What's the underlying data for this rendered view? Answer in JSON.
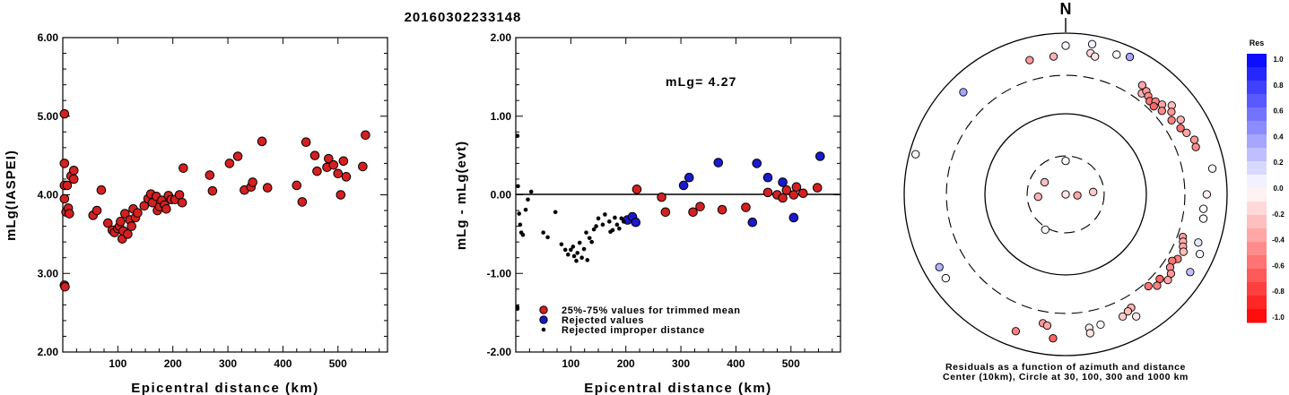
{
  "figure": {
    "title": "20160302233148",
    "colorbar_title": "Res",
    "north_label": "N",
    "polar_caption_line1": "Residuals as a function of azimuth and distance",
    "polar_caption_line2": "Center (10km), Circle at 30, 100, 300 and 1000 km",
    "colors": {
      "trimmed": "#d42020",
      "rejected": "#1a1acc",
      "improper": "#000000"
    }
  },
  "chart_data": [
    {
      "type": "scatter",
      "title": "",
      "xlabel": "Epicentral distance (km)",
      "ylabel": "mLg(IASPEI)",
      "xlim": [
        0,
        590
      ],
      "ylim": [
        2.0,
        6.0
      ],
      "xticks": [
        "100",
        "200",
        "300",
        "400",
        "500"
      ],
      "yticks": [
        "2.00",
        "3.00",
        "4.00",
        "5.00",
        "6.00"
      ],
      "series": [
        {
          "role": "trimmed",
          "points": [
            [
              3,
              5.03
            ],
            [
              3,
              4.4
            ],
            [
              3,
              4.12
            ],
            [
              3,
              3.95
            ],
            [
              3,
              2.85
            ],
            [
              4,
              2.83
            ],
            [
              6,
              3.78
            ],
            [
              8,
              4.12
            ],
            [
              10,
              3.83
            ],
            [
              12,
              3.76
            ],
            [
              15,
              4.24
            ],
            [
              20,
              4.31
            ],
            [
              20,
              4.2
            ],
            [
              55,
              3.74
            ],
            [
              62,
              3.8
            ],
            [
              70,
              4.06
            ],
            [
              82,
              3.64
            ],
            [
              90,
              3.55
            ],
            [
              94,
              3.52
            ],
            [
              100,
              3.57
            ],
            [
              103,
              3.6
            ],
            [
              105,
              3.66
            ],
            [
              108,
              3.44
            ],
            [
              110,
              3.54
            ],
            [
              113,
              3.76
            ],
            [
              118,
              3.5
            ],
            [
              122,
              3.68
            ],
            [
              125,
              3.6
            ],
            [
              128,
              3.82
            ],
            [
              132,
              3.71
            ],
            [
              136,
              3.77
            ],
            [
              148,
              3.86
            ],
            [
              155,
              3.95
            ],
            [
              160,
              4.01
            ],
            [
              163,
              3.9
            ],
            [
              170,
              3.98
            ],
            [
              172,
              3.8
            ],
            [
              176,
              3.85
            ],
            [
              180,
              3.93
            ],
            [
              185,
              3.87
            ],
            [
              188,
              3.82
            ],
            [
              192,
              3.99
            ],
            [
              197,
              3.94
            ],
            [
              204,
              3.94
            ],
            [
              212,
              4.0
            ],
            [
              217,
              3.9
            ],
            [
              219,
              4.34
            ],
            [
              267,
              4.25
            ],
            [
              272,
              4.05
            ],
            [
              303,
              4.4
            ],
            [
              318,
              4.49
            ],
            [
              330,
              4.06
            ],
            [
              342,
              4.1
            ],
            [
              345,
              4.16
            ],
            [
              362,
              4.68
            ],
            [
              372,
              4.09
            ],
            [
              425,
              4.12
            ],
            [
              435,
              3.91
            ],
            [
              442,
              4.67
            ],
            [
              458,
              4.5
            ],
            [
              462,
              4.3
            ],
            [
              480,
              4.35
            ],
            [
              483,
              4.46
            ],
            [
              492,
              4.38
            ],
            [
              500,
              4.27
            ],
            [
              505,
              4.0
            ],
            [
              510,
              4.43
            ],
            [
              515,
              4.23
            ],
            [
              545,
              4.36
            ],
            [
              550,
              4.76
            ]
          ]
        }
      ]
    },
    {
      "type": "scatter",
      "title": "",
      "xlabel": "Epicentral distance (km)",
      "ylabel": "mLg - mLg(evt)",
      "xlim": [
        0,
        590
      ],
      "ylim": [
        -2.0,
        2.0
      ],
      "xticks": [
        "100",
        "200",
        "300",
        "400",
        "500"
      ],
      "yticks": [
        "-2.00",
        "-1.00",
        "0.00",
        "1.00",
        "2.00"
      ],
      "annotation": "mLg= 4.27",
      "legend": [
        "25%-75% values for trimmed mean",
        "Rejected values",
        "Rejected improper distance"
      ],
      "legend_position": "bottom-left",
      "series": [
        {
          "role": "trimmed",
          "points": [
            [
              220,
              0.07
            ],
            [
              265,
              -0.03
            ],
            [
              272,
              -0.22
            ],
            [
              322,
              -0.22
            ],
            [
              335,
              -0.15
            ],
            [
              375,
              -0.19
            ],
            [
              418,
              -0.16
            ],
            [
              458,
              0.03
            ],
            [
              475,
              0.0
            ],
            [
              485,
              -0.04
            ],
            [
              492,
              0.06
            ],
            [
              505,
              0.0
            ],
            [
              510,
              0.1
            ],
            [
              522,
              0.02
            ],
            [
              548,
              0.09
            ]
          ]
        },
        {
          "role": "rejected",
          "points": [
            [
              203,
              -0.32
            ],
            [
              212,
              -0.28
            ],
            [
              218,
              -0.35
            ],
            [
              305,
              0.12
            ],
            [
              315,
              0.22
            ],
            [
              368,
              0.41
            ],
            [
              430,
              -0.35
            ],
            [
              438,
              0.4
            ],
            [
              458,
              0.22
            ],
            [
              485,
              0.16
            ],
            [
              505,
              -0.29
            ],
            [
              553,
              0.49
            ]
          ]
        },
        {
          "role": "improper",
          "points": [
            [
              3,
              0.75
            ],
            [
              4,
              0.11
            ],
            [
              6,
              -0.24
            ],
            [
              8,
              -0.38
            ],
            [
              10,
              -0.48
            ],
            [
              13,
              -0.51
            ],
            [
              18,
              -0.19
            ],
            [
              22,
              -0.06
            ],
            [
              28,
              0.04
            ],
            [
              3,
              -1.43
            ],
            [
              3,
              -1.45
            ],
            [
              50,
              -0.48
            ],
            [
              58,
              -0.54
            ],
            [
              72,
              -0.22
            ],
            [
              83,
              -0.63
            ],
            [
              90,
              -0.7
            ],
            [
              95,
              -0.76
            ],
            [
              100,
              -0.7
            ],
            [
              104,
              -0.66
            ],
            [
              106,
              -0.78
            ],
            [
              110,
              -0.84
            ],
            [
              112,
              -0.74
            ],
            [
              116,
              -0.61
            ],
            [
              120,
              -0.8
            ],
            [
              124,
              -0.69
            ],
            [
              128,
              -0.48
            ],
            [
              130,
              -0.83
            ],
            [
              134,
              -0.55
            ],
            [
              138,
              -0.6
            ],
            [
              142,
              -0.44
            ],
            [
              146,
              -0.4
            ],
            [
              150,
              -0.3
            ],
            [
              158,
              -0.38
            ],
            [
              162,
              -0.25
            ],
            [
              170,
              -0.34
            ],
            [
              172,
              -0.47
            ],
            [
              176,
              -0.45
            ],
            [
              180,
              -0.29
            ],
            [
              184,
              -0.38
            ],
            [
              188,
              -0.43
            ],
            [
              192,
              -0.3
            ],
            [
              196,
              -0.34
            ]
          ]
        }
      ]
    },
    {
      "type": "scatter",
      "title": "",
      "xlabel": "",
      "ylabel": "",
      "note": "polar plot: azimuth in degrees clockwise from north, distance in km on a log scale",
      "circles_km": [
        30,
        100,
        300,
        1000
      ],
      "center_km": 10,
      "points": [
        {
          "az": 35,
          "km": 450,
          "res": -0.35
        },
        {
          "az": 37,
          "km": 370,
          "res": -0.3
        },
        {
          "az": 38,
          "km": 420,
          "res": -0.4
        },
        {
          "az": 40,
          "km": 390,
          "res": -0.45
        },
        {
          "az": 42,
          "km": 360,
          "res": -0.55
        },
        {
          "az": 44,
          "km": 400,
          "res": -0.5
        },
        {
          "az": 45,
          "km": 350,
          "res": -0.6
        },
        {
          "az": 47,
          "km": 430,
          "res": -0.35
        },
        {
          "az": 49,
          "km": 380,
          "res": -0.45
        },
        {
          "az": 50,
          "km": 520,
          "res": -0.25
        },
        {
          "az": 52,
          "km": 460,
          "res": -0.4
        },
        {
          "az": 55,
          "km": 400,
          "res": -0.5
        },
        {
          "az": 57,
          "km": 500,
          "res": -0.3
        },
        {
          "az": 60,
          "km": 440,
          "res": -0.55
        },
        {
          "az": 63,
          "km": 480,
          "res": -0.35
        },
        {
          "az": 67,
          "km": 540,
          "res": -0.4
        },
        {
          "az": 70,
          "km": 520,
          "res": -0.45
        },
        {
          "az": 110,
          "km": 350,
          "res": -0.4
        },
        {
          "az": 112,
          "km": 370,
          "res": -0.3
        },
        {
          "az": 114,
          "km": 390,
          "res": -0.35
        },
        {
          "az": 116,
          "km": 420,
          "res": -0.25
        },
        {
          "az": 120,
          "km": 400,
          "res": -0.5
        },
        {
          "az": 122,
          "km": 360,
          "res": -0.55
        },
        {
          "az": 125,
          "km": 380,
          "res": -0.45
        },
        {
          "az": 127,
          "km": 430,
          "res": -0.4
        },
        {
          "az": 130,
          "km": 450,
          "res": -0.35
        },
        {
          "az": 132,
          "km": 370,
          "res": -0.6
        },
        {
          "az": 135,
          "km": 400,
          "res": -0.5
        },
        {
          "az": 138,
          "km": 340,
          "res": -0.55
        },
        {
          "az": 150,
          "km": 420,
          "res": -0.3
        },
        {
          "az": 152,
          "km": 440,
          "res": -0.25
        },
        {
          "az": 155,
          "km": 470,
          "res": -0.2
        },
        {
          "az": 90,
          "km": 560,
          "res": -0.05
        },
        {
          "az": 96,
          "km": 520,
          "res": 0.0
        },
        {
          "az": 100,
          "km": 540,
          "res": -0.03
        },
        {
          "az": 110,
          "km": 560,
          "res": 0.1
        },
        {
          "az": 114,
          "km": 660,
          "res": 0.03
        },
        {
          "az": 122,
          "km": 660,
          "res": 0.25
        },
        {
          "az": 80,
          "km": 700,
          "res": 0.02
        },
        {
          "az": 10,
          "km": 600,
          "res": -0.15
        },
        {
          "az": 12,
          "km": 560,
          "res": -0.1
        },
        {
          "az": 20,
          "km": 700,
          "res": 0.0
        },
        {
          "az": 25,
          "km": 760,
          "res": 0.35
        },
        {
          "az": 10,
          "km": 780,
          "res": 0.05
        },
        {
          "az": 0,
          "km": 700,
          "res": 0.03
        },
        {
          "az": -45,
          "km": 620,
          "res": 0.35
        },
        {
          "az": -75,
          "km": 840,
          "res": 0.03
        },
        {
          "az": -120,
          "km": 640,
          "res": 0.3
        },
        {
          "az": -125,
          "km": 650,
          "res": 0.0
        },
        {
          "az": -15,
          "km": 530,
          "res": -0.4
        },
        {
          "az": -5,
          "km": 520,
          "res": -0.3
        },
        {
          "az": -170,
          "km": 420,
          "res": -0.4
        },
        {
          "az": -172,
          "km": 440,
          "res": -0.35
        },
        {
          "az": -160,
          "km": 640,
          "res": -0.5
        },
        {
          "az": 165,
          "km": 470,
          "res": 0.0
        },
        {
          "az": 170,
          "km": 480,
          "res": -0.05
        },
        {
          "az": 170,
          "km": 560,
          "res": -0.1
        },
        {
          "az": -175,
          "km": 620,
          "res": -0.6
        },
        {
          "az": 150,
          "km": 560,
          "res": -0.1
        },
        {
          "az": -95,
          "km": 22,
          "res": -0.3
        },
        {
          "az": 85,
          "km": 22,
          "res": -0.2
        },
        {
          "az": 95,
          "km": 14,
          "res": -0.35
        },
        {
          "az": -150,
          "km": 32,
          "res": 0.02
        },
        {
          "az": 0,
          "km": 26,
          "res": 0.02
        },
        {
          "az": 180,
          "km": 10,
          "res": -0.1
        },
        {
          "az": -60,
          "km": 20,
          "res": -0.25
        }
      ]
    },
    {
      "type": "heatmap",
      "title": "Res",
      "xlabel": "",
      "ylabel": "",
      "note": "colorbar scale for residuals",
      "vmin": -1.0,
      "vmax": 1.0,
      "tick_labels": [
        "1.0",
        "0.8",
        "0.6",
        "0.4",
        "0.2",
        "0.0",
        "-0.2",
        "-0.4",
        "-0.6",
        "-0.8",
        "-1.0"
      ]
    }
  ]
}
